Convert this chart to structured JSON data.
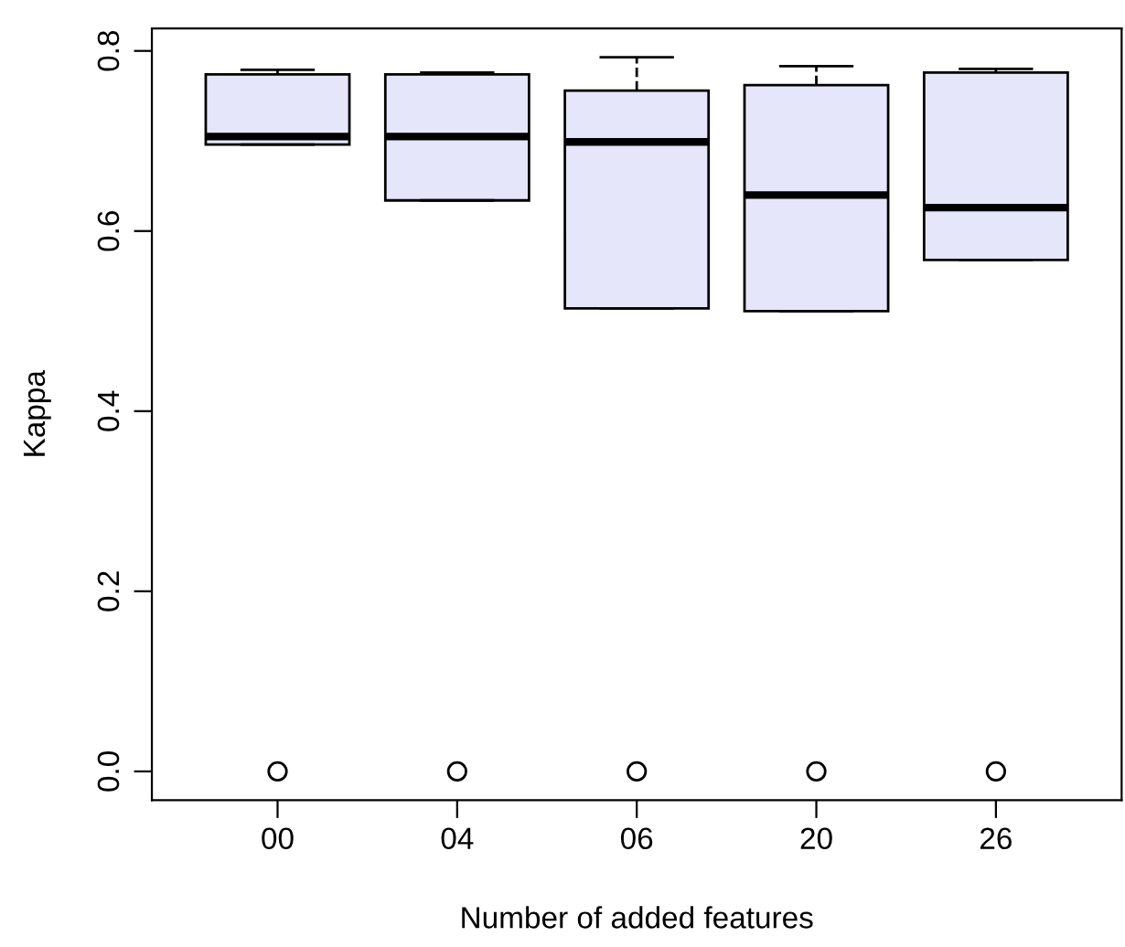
{
  "chart_data": {
    "type": "box",
    "xlabel": "Number of added features",
    "ylabel": "Kappa",
    "categories": [
      "00",
      "04",
      "06",
      "20",
      "26"
    ],
    "color": "#e6e6fa",
    "ylim": [
      -0.032,
      0.825
    ],
    "yticks": [
      {
        "value": 0.0,
        "label": "0.0"
      },
      {
        "value": 0.2,
        "label": "0.2"
      },
      {
        "value": 0.4,
        "label": "0.4"
      },
      {
        "value": 0.6,
        "label": "0.6"
      },
      {
        "value": 0.8,
        "label": "0.8"
      }
    ],
    "grid": false,
    "legend": false,
    "boxes": [
      {
        "low": 0.696,
        "q1": 0.696,
        "median": 0.705,
        "q3": 0.774,
        "high": 0.779,
        "outliers": [
          0
        ]
      },
      {
        "low": 0.634,
        "q1": 0.634,
        "median": 0.705,
        "q3": 0.774,
        "high": 0.776,
        "outliers": [
          0
        ]
      },
      {
        "low": 0.514,
        "q1": 0.514,
        "median": 0.699,
        "q3": 0.756,
        "high": 0.793,
        "outliers": [
          0
        ]
      },
      {
        "low": 0.511,
        "q1": 0.511,
        "median": 0.64,
        "q3": 0.762,
        "high": 0.783,
        "outliers": [
          0
        ]
      },
      {
        "low": 0.568,
        "q1": 0.568,
        "median": 0.626,
        "q3": 0.776,
        "high": 0.78,
        "outliers": [
          0
        ]
      }
    ]
  }
}
